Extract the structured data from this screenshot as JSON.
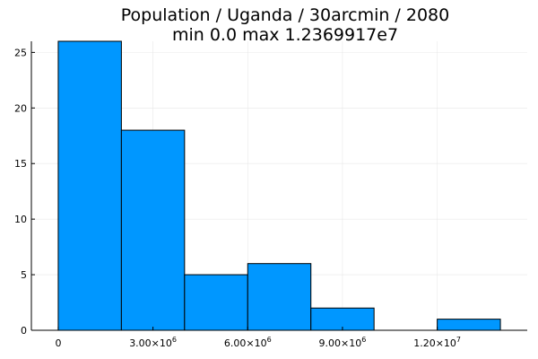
{
  "chart_data": {
    "type": "bar",
    "title": "Population / Uganda / 30arcmin / 2080",
    "subtitle": "min 0.0  max 1.2369917e7",
    "bins": [
      {
        "x0": 0,
        "x1": 2000000,
        "value": 26
      },
      {
        "x0": 2000000,
        "x1": 4000000,
        "value": 18
      },
      {
        "x0": 4000000,
        "x1": 6000000,
        "value": 5
      },
      {
        "x0": 6000000,
        "x1": 8000000,
        "value": 6
      },
      {
        "x0": 8000000,
        "x1": 10000000,
        "value": 2
      },
      {
        "x0": 10000000,
        "x1": 12000000,
        "value": 0
      },
      {
        "x0": 12000000,
        "x1": 14000000,
        "value": 1
      }
    ],
    "xlim": [
      -850000,
      14850000
    ],
    "ylim": [
      0,
      26
    ],
    "x_ticks": [
      {
        "value": 0,
        "base": "0",
        "exp": ""
      },
      {
        "value": 3000000,
        "base": "3.00×10",
        "exp": "6"
      },
      {
        "value": 6000000,
        "base": "6.00×10",
        "exp": "6"
      },
      {
        "value": 9000000,
        "base": "9.00×10",
        "exp": "6"
      },
      {
        "value": 12000000,
        "base": "1.20×10",
        "exp": "7"
      }
    ],
    "y_ticks": [
      {
        "value": 0,
        "label": "0"
      },
      {
        "value": 5,
        "label": "5"
      },
      {
        "value": 10,
        "label": "10"
      },
      {
        "value": 15,
        "label": "15"
      },
      {
        "value": 20,
        "label": "20"
      },
      {
        "value": 25,
        "label": "25"
      }
    ],
    "grid": true,
    "legend": "none",
    "colors": {
      "bar_fill": "#0097FF",
      "bar_stroke": "#000000",
      "grid": "#e8e8e8",
      "axis": "#000000"
    }
  }
}
